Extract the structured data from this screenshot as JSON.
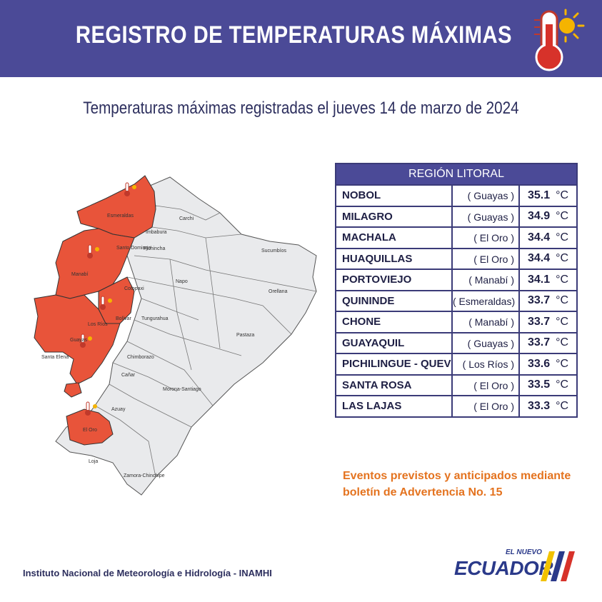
{
  "header": {
    "title": "REGISTRO DE TEMPERATURAS MÁXIMAS",
    "icon": "thermometer-sun-icon"
  },
  "subtitle": "Temperaturas máximas registradas el jueves 14 de marzo de 2024",
  "map": {
    "highlight_color": "#e8543a",
    "base_color": "#e9eaec",
    "labels": [
      "Esmeraldas",
      "Carchi",
      "Imbabura",
      "Santo Domingo",
      "Pichincha",
      "Sucumbíos",
      "Manabí",
      "Napo",
      "Orellana",
      "Cotopaxi",
      "Bolívar",
      "Tungurahua",
      "Los Ríos",
      "Pastaza",
      "Guayas",
      "Santa Elena",
      "Chimborazo",
      "Cañar",
      "Morona-Santiago",
      "Azuay",
      "El Oro",
      "Loja",
      "Zamora-Chinchipe"
    ]
  },
  "table": {
    "header": "REGIÓN LITORAL",
    "unit": "°C",
    "rows": [
      {
        "city": "NOBOL",
        "province": "( Guayas )",
        "temp": "35.1"
      },
      {
        "city": "MILAGRO",
        "province": "( Guayas )",
        "temp": "34.9"
      },
      {
        "city": "MACHALA",
        "province": "( El Oro )",
        "temp": "34.4"
      },
      {
        "city": "HUAQUILLAS",
        "province": "( El Oro )",
        "temp": "34.4"
      },
      {
        "city": "PORTOVIEJO",
        "province": "( Manabí )",
        "temp": "34.1"
      },
      {
        "city": "QUININDE",
        "province": "( Esmeraldas)",
        "temp": "33.7"
      },
      {
        "city": "CHONE",
        "province": "( Manabí )",
        "temp": "33.7"
      },
      {
        "city": "GUAYAQUIL",
        "province": "( Guayas )",
        "temp": "33.7"
      },
      {
        "city": "PICHILINGUE - QUEVEDO",
        "province": "( Los Ríos )",
        "temp": "33.6"
      },
      {
        "city": "SANTA ROSA",
        "province": "( El Oro )",
        "temp": "33.5"
      },
      {
        "city": "LAS LAJAS",
        "province": "( El Oro )",
        "temp": "33.3"
      }
    ]
  },
  "note": {
    "line1": "Eventos previstos y anticipados mediante",
    "line2": "boletín de Advertencia No. 15"
  },
  "footer": {
    "institution": "Instituto Nacional de Meteorología e Hidrología - INAMHI",
    "logo_small": "EL NUEVO",
    "logo_big": "ECUADOR"
  }
}
